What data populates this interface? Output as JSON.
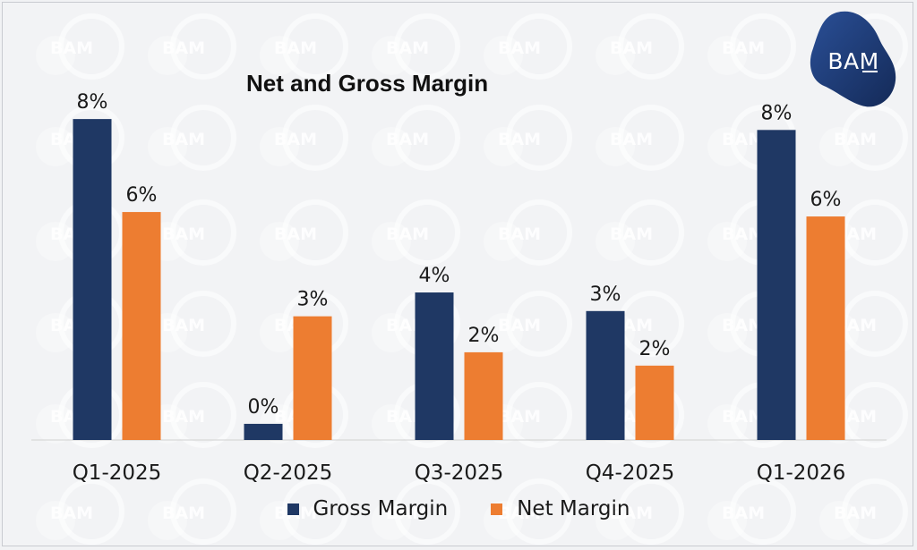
{
  "logo": {
    "text": "BAM",
    "color": "#1e3a6e"
  },
  "watermark": {
    "text": "BAM"
  },
  "chart_data": {
    "type": "bar",
    "title": "Net and Gross Margin",
    "categories": [
      "Q1-2025",
      "Q2-2025",
      "Q3-2025",
      "Q4-2025",
      "Q1-2026"
    ],
    "series": [
      {
        "name": "Gross Margin",
        "color": "#1f3864",
        "values": [
          7.94,
          0.4,
          3.65,
          3.19,
          7.67
        ],
        "labels": [
          "8%",
          "0%",
          "4%",
          "3%",
          "8%"
        ]
      },
      {
        "name": "Net Margin",
        "color": "#ed7d31",
        "values": [
          5.64,
          3.06,
          2.17,
          1.84,
          5.53
        ],
        "labels": [
          "6%",
          "3%",
          "2%",
          "2%",
          "6%"
        ]
      }
    ],
    "xlabel": "",
    "ylabel": "",
    "ylim": [
      0,
      10
    ],
    "grid": false,
    "legend": "bottom"
  }
}
